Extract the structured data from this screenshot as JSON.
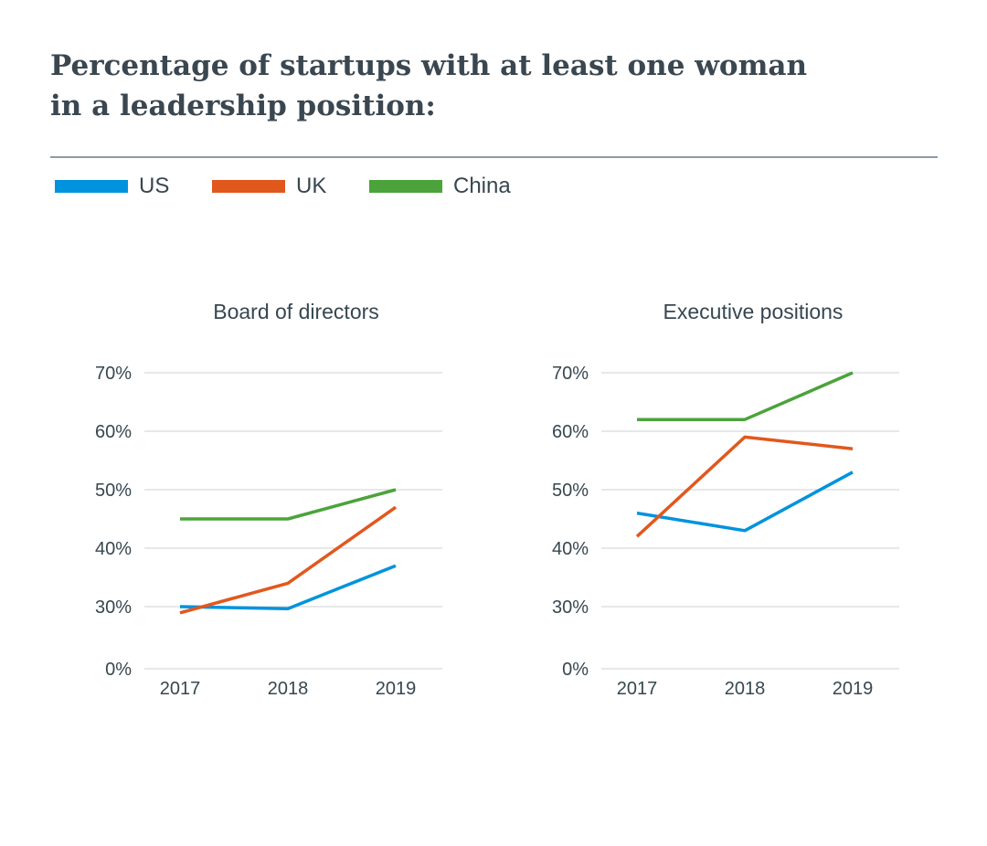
{
  "title_lines": [
    "Percentage of startups with at least one woman",
    "in a leadership position:"
  ],
  "legend": [
    {
      "label": "US",
      "color": "#0093dd"
    },
    {
      "label": "UK",
      "color": "#e1581d"
    },
    {
      "label": "China",
      "color": "#4ca33b"
    }
  ],
  "chart_data": [
    {
      "type": "line",
      "title": "Board of directors",
      "categories": [
        "2017",
        "2018",
        "2019"
      ],
      "y_ticks": [
        "0%",
        "30%",
        "40%",
        "50%",
        "60%",
        "70%"
      ],
      "y_tick_values": [
        0,
        30,
        40,
        50,
        60,
        70
      ],
      "ylim": [
        0,
        70
      ],
      "y_axis_break": "0% to 30% compressed",
      "grid": true,
      "series": [
        {
          "name": "US",
          "values": [
            30,
            29,
            37
          ],
          "color": "#0093dd"
        },
        {
          "name": "UK",
          "values": [
            27,
            34,
            47
          ],
          "color": "#e1581d"
        },
        {
          "name": "China",
          "values": [
            45,
            45,
            50
          ],
          "color": "#4ca33b"
        }
      ]
    },
    {
      "type": "line",
      "title": "Executive positions",
      "categories": [
        "2017",
        "2018",
        "2019"
      ],
      "y_ticks": [
        "0%",
        "30%",
        "40%",
        "50%",
        "60%",
        "70%"
      ],
      "y_tick_values": [
        0,
        30,
        40,
        50,
        60,
        70
      ],
      "ylim": [
        0,
        70
      ],
      "y_axis_break": "0% to 30% compressed",
      "grid": true,
      "series": [
        {
          "name": "US",
          "values": [
            46,
            43,
            53
          ],
          "color": "#0093dd"
        },
        {
          "name": "UK",
          "values": [
            42,
            59,
            57
          ],
          "color": "#e1581d"
        },
        {
          "name": "China",
          "values": [
            62,
            62,
            70
          ],
          "color": "#4ca33b"
        }
      ]
    }
  ]
}
